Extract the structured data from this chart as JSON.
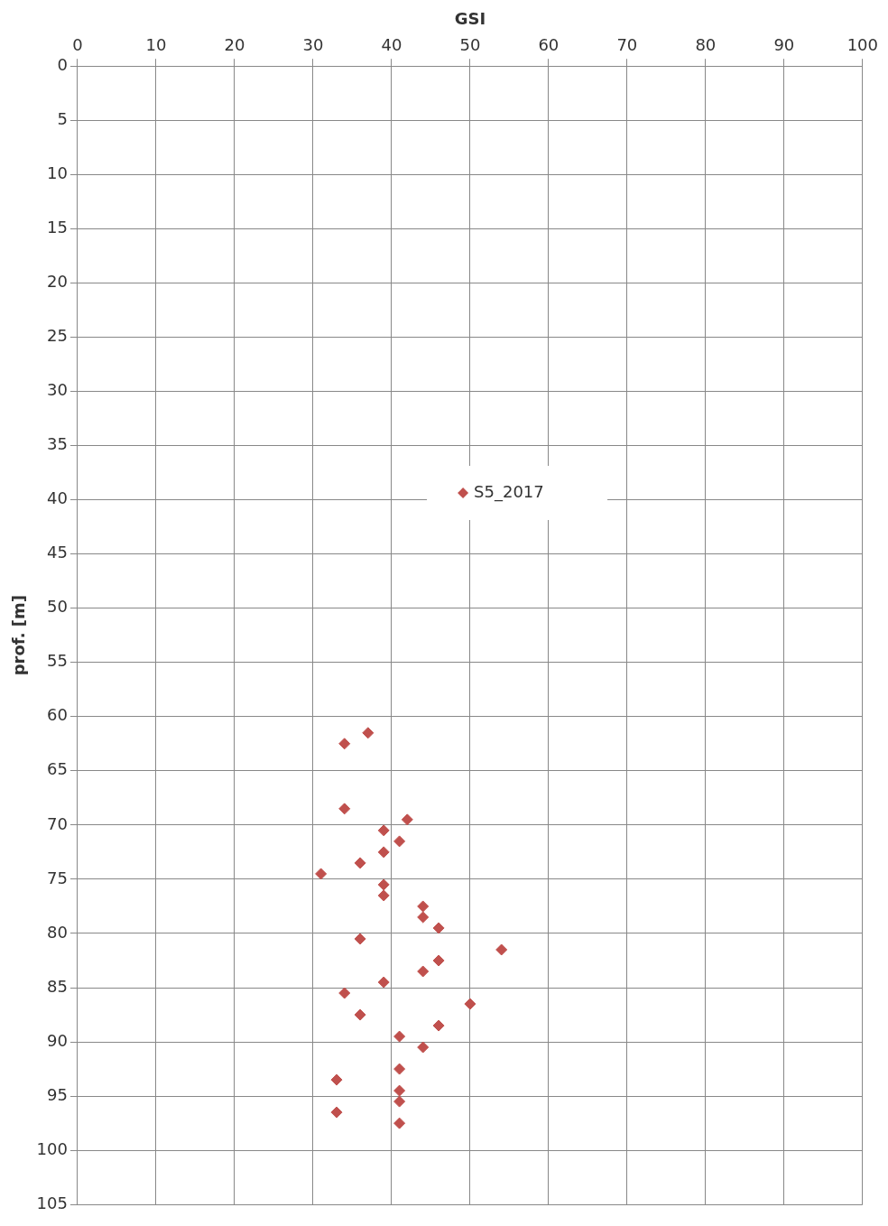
{
  "chart_data": {
    "type": "scatter",
    "xlabel": "GSI",
    "ylabel": "prof. [m]",
    "xlim": [
      0,
      100
    ],
    "xticks": [
      0,
      10,
      20,
      30,
      40,
      50,
      60,
      70,
      80,
      90,
      100
    ],
    "ylim": [
      105,
      0
    ],
    "yticks": [
      0,
      5,
      10,
      15,
      20,
      25,
      30,
      35,
      40,
      45,
      50,
      55,
      60,
      65,
      70,
      75,
      80,
      85,
      90,
      95,
      100,
      105
    ],
    "grid": true,
    "legend": "center",
    "marker": "diamond",
    "series": [
      {
        "name": "S5_2017",
        "color": "#c0504d",
        "x": [
          37,
          34,
          34,
          42,
          39,
          41,
          39,
          36,
          31,
          39,
          39,
          44,
          44,
          46,
          36,
          54,
          46,
          44,
          39,
          34,
          50,
          36,
          46,
          41,
          44,
          41,
          33,
          41,
          41,
          33,
          41
        ],
        "values": [
          61.5,
          62.5,
          68.5,
          69.5,
          70.5,
          71.5,
          72.5,
          73.5,
          74.5,
          75.5,
          76.5,
          77.5,
          78.5,
          79.5,
          80.5,
          81.5,
          82.5,
          83.5,
          84.5,
          85.5,
          86.5,
          87.5,
          88.5,
          89.5,
          90.5,
          92.5,
          93.5,
          94.5,
          95.5,
          96.5,
          97.5
        ]
      }
    ]
  }
}
